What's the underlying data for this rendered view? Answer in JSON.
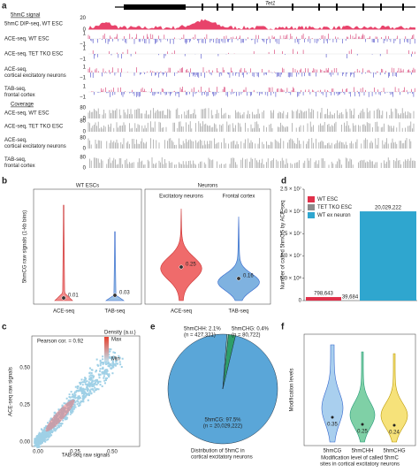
{
  "panel_a": {
    "letter": "a",
    "gene": "Tet1",
    "section_signal": "5hmC signal",
    "section_coverage": "Coverage",
    "signal_tracks": [
      {
        "lines": [
          "5hmC DIP-seq, WT ESC"
        ],
        "top": "20",
        "bottom": "0"
      },
      {
        "lines": [
          "ACE-seq, WT ESC"
        ],
        "top": "1",
        "bottom": "−1"
      },
      {
        "lines": [
          "ACE-seq, TET TKO ESC"
        ],
        "top": "1",
        "bottom": "−1"
      },
      {
        "lines": [
          "ACE-seq,",
          "cortical excitatory neurons"
        ],
        "top": "1",
        "bottom": "−1"
      },
      {
        "lines": [
          "TAB-seq,",
          "frontal cortex"
        ],
        "top": "1",
        "bottom": "−1"
      }
    ],
    "coverage_tracks": [
      {
        "lines": [
          "ACE-seq, WT ESC"
        ],
        "top": "80",
        "bottom": "0"
      },
      {
        "lines": [
          "ACE-seq, TET TKO ESC"
        ],
        "top": "80",
        "bottom": "0"
      },
      {
        "lines": [
          "ACE-seq,",
          "cortical excitatory neurons"
        ],
        "top": "80",
        "bottom": "0"
      },
      {
        "lines": [
          "TAB-seq,",
          "frontal cortex"
        ],
        "top": "80",
        "bottom": "0"
      }
    ]
  },
  "panel_b": {
    "letter": "b",
    "group_esc": "WT ESCs",
    "group_neurons": "Neurons",
    "sub_excitatory": "Excitatory neurons",
    "sub_frontal": "Frontal cortex",
    "ylabel": "5hmCG raw signals (1-kb bins)",
    "xlabels": [
      "ACE-seq",
      "TAB-seq",
      "ACE-seq",
      "TAB-seq"
    ],
    "medians": [
      "0.01",
      "0.03",
      "0.25",
      "0.16"
    ]
  },
  "panel_c": {
    "letter": "c",
    "annotation": "Pearson cor. = 0.92",
    "legend_title": "Density (a.u.)",
    "legend_max": "Max",
    "legend_min": "Min",
    "xlabel": "TAB-seq raw signals",
    "ylabel": "ACE-seq raw signals",
    "xticks": [
      "0.00",
      "0.25",
      "0.50"
    ],
    "yticks": [
      "0.00",
      "0.25",
      "0.50"
    ]
  },
  "panel_e": {
    "letter": "e",
    "caption": [
      "Distribution of 5hmC in",
      "cortical excitatory neurons"
    ]
  },
  "panel_f": {
    "letter": "f",
    "ylabel": "Modification levels",
    "xlabels": [
      "5hmCG",
      "5hmCHH",
      "5hmCHG"
    ],
    "medians": [
      "0.35",
      "0.25",
      "0.24"
    ],
    "caption": [
      "Modification level of called 5hmC",
      "sites in cortical excitatory neurons"
    ]
  },
  "chart_data": [
    {
      "type": "bar",
      "letter": "d",
      "ylabel": "Number of called 5hmCG by ACE-seq",
      "ylim": [
        0,
        25000000
      ],
      "yticks": [
        0,
        {
          "value": 5000000,
          "label": "5.0 × 10⁶"
        },
        {
          "value": 10000000,
          "label": "1.0 × 10⁷"
        },
        {
          "value": 15000000,
          "label": "1.5 × 10⁷"
        },
        {
          "value": 20000000,
          "label": "2.0 × 10⁷"
        },
        {
          "value": 25000000,
          "label": "2.5 × 10⁷"
        }
      ],
      "series": [
        {
          "name": "WT ESC",
          "color": "#e0304a",
          "values": [
            798643
          ],
          "value_labels": [
            "798,643"
          ]
        },
        {
          "name": "TET TKO ESC",
          "color": "#8c8c8c",
          "values": [
            39684
          ],
          "value_labels": [
            "39,684"
          ]
        },
        {
          "name": "WT ex neuron",
          "color": "#2fa6cf",
          "values": [
            20029222
          ],
          "value_labels": [
            "20,029,222"
          ]
        }
      ]
    },
    {
      "type": "pie",
      "values": [
        97.5,
        2.1,
        0.4
      ],
      "value_labels": [
        "5hmCG: 97.5%",
        "5hmCHH: 2.1%",
        "5hmCHG: 0.4%"
      ],
      "counts": [
        "(n = 20,029,222)",
        "(n = 427,321)",
        "(n = 80,722)"
      ],
      "colors": [
        "#5aa6d8",
        "#2e9e6a",
        "#a8dcc0"
      ]
    }
  ]
}
